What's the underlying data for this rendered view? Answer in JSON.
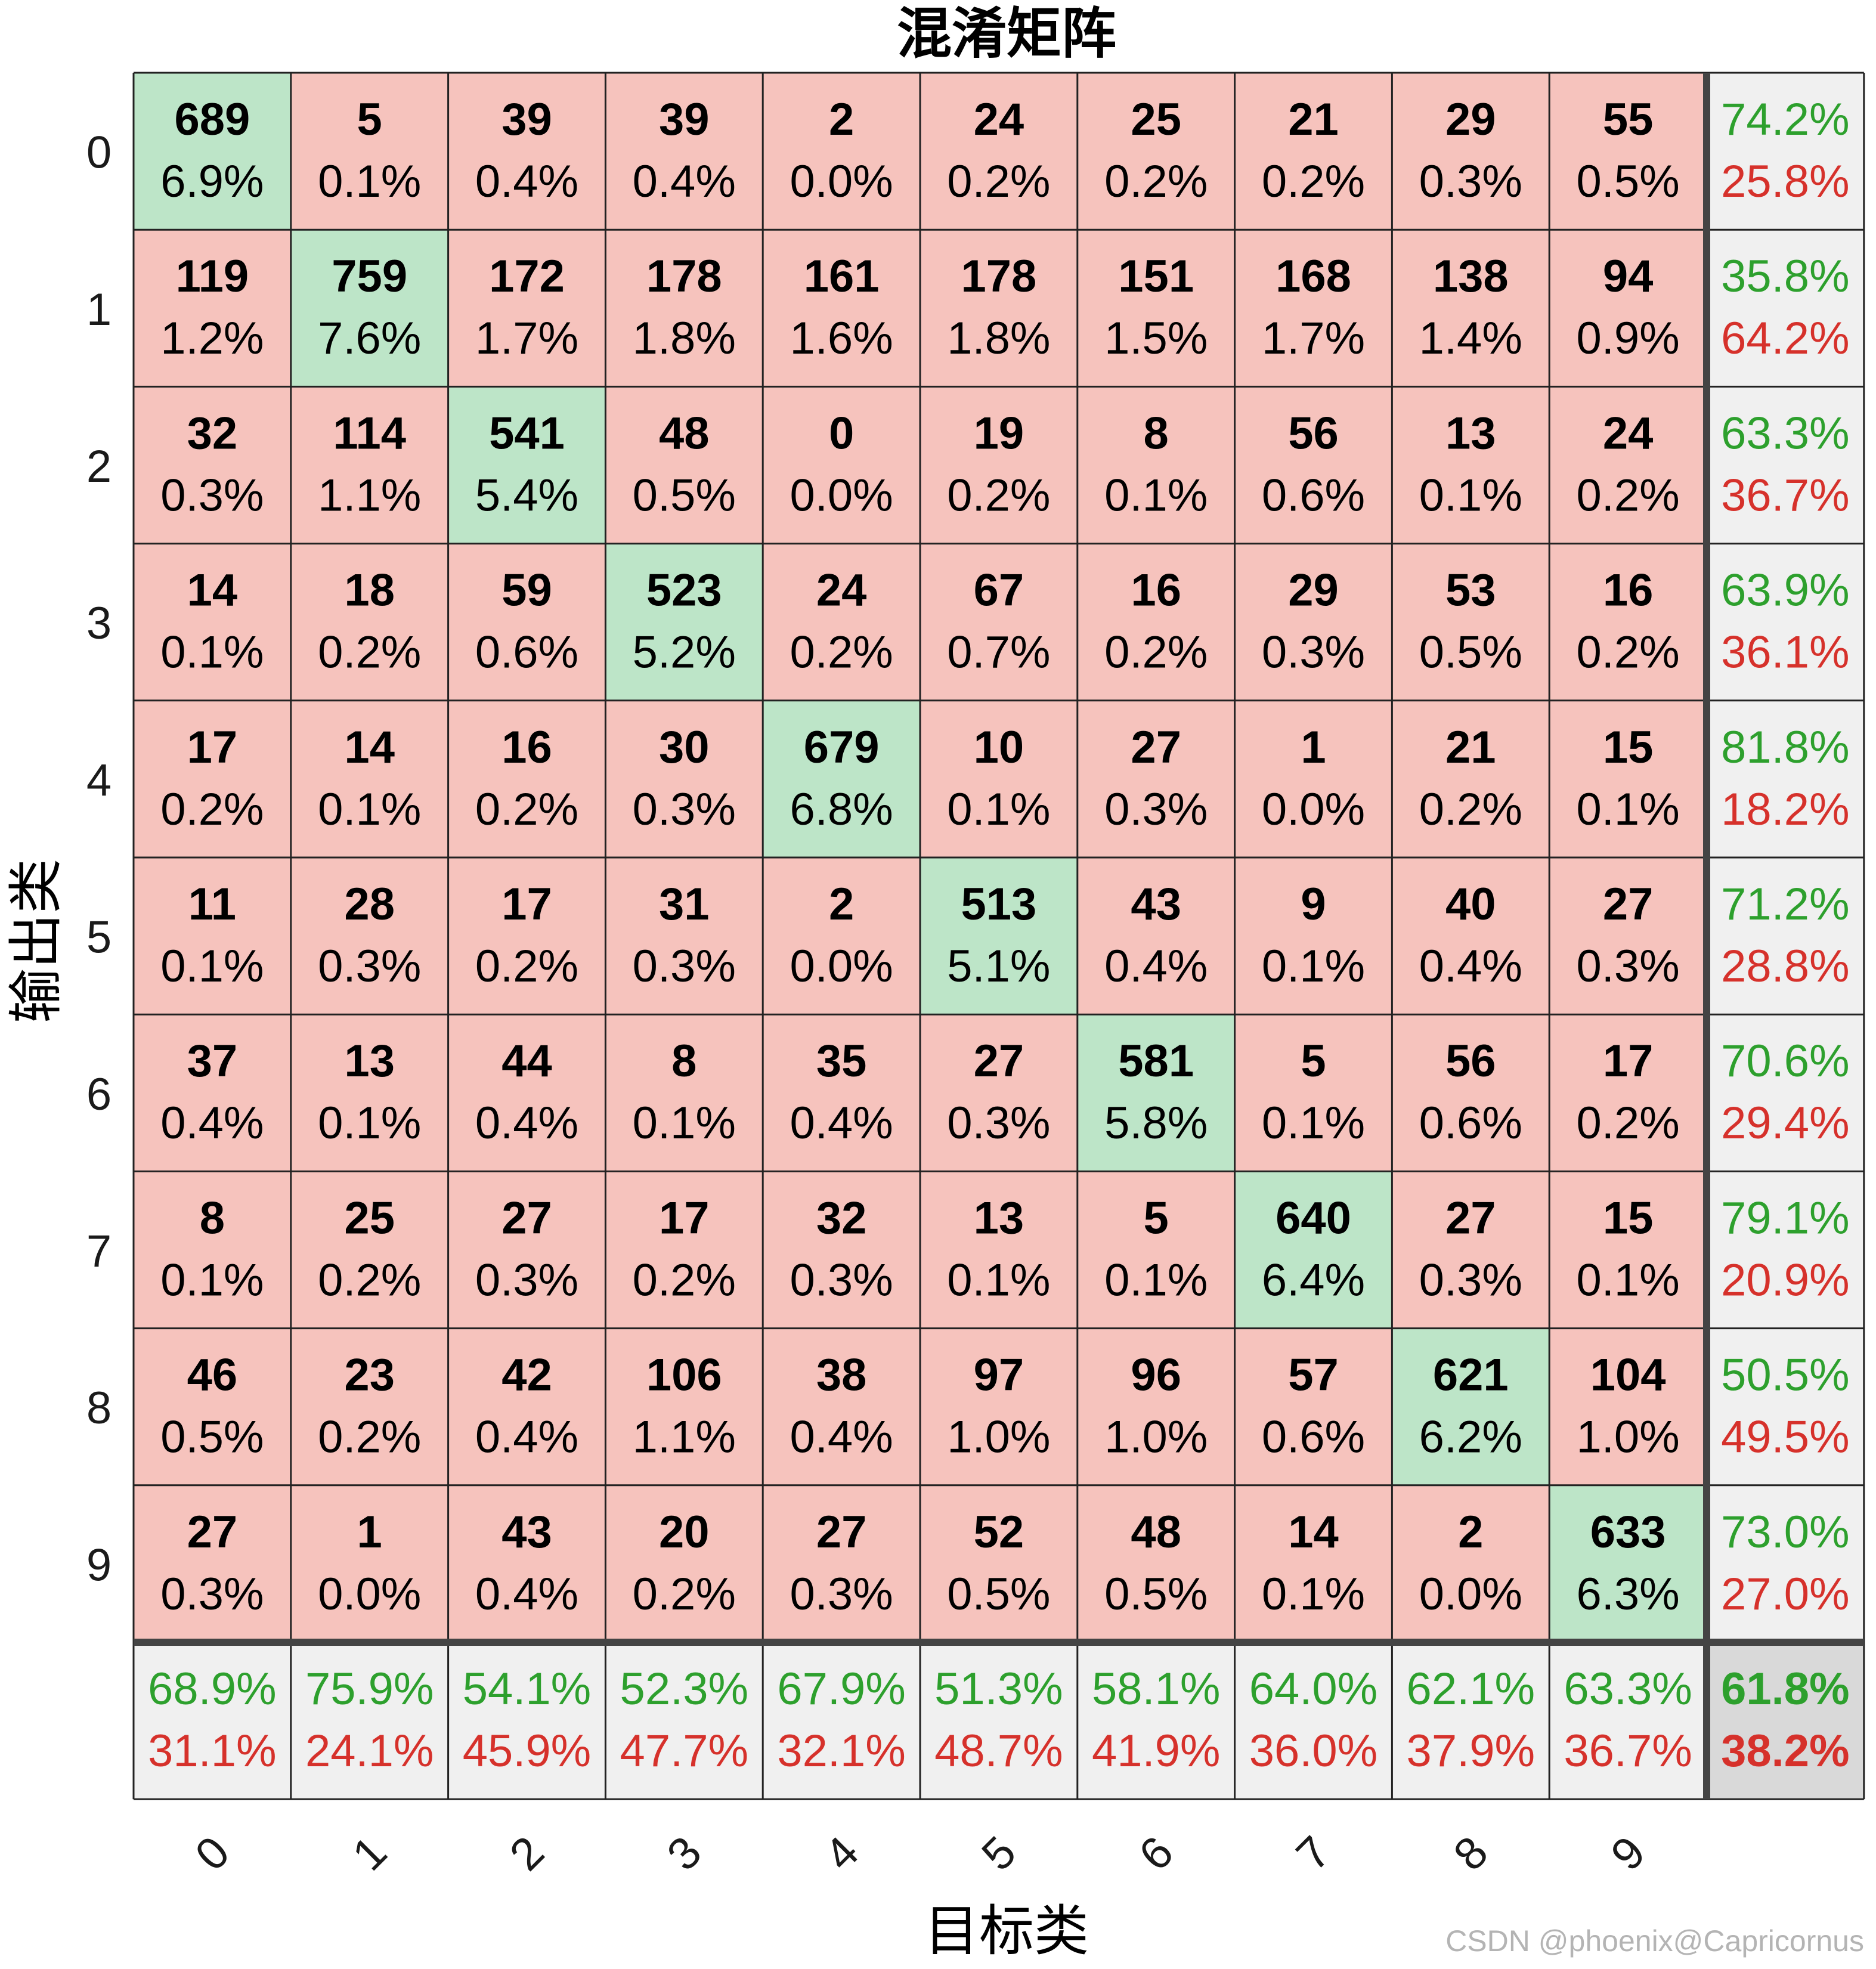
{
  "chart_data": {
    "type": "heatmap",
    "title": "混淆矩阵",
    "xlabel": "目标类",
    "ylabel": "输出类",
    "x_ticks": [
      "0",
      "1",
      "2",
      "3",
      "4",
      "5",
      "6",
      "7",
      "8",
      "9"
    ],
    "y_ticks": [
      "0",
      "1",
      "2",
      "3",
      "4",
      "5",
      "6",
      "7",
      "8",
      "9"
    ],
    "counts": [
      [
        689,
        5,
        39,
        39,
        2,
        24,
        25,
        21,
        29,
        55
      ],
      [
        119,
        759,
        172,
        178,
        161,
        178,
        151,
        168,
        138,
        94
      ],
      [
        32,
        114,
        541,
        48,
        0,
        19,
        8,
        56,
        13,
        24
      ],
      [
        14,
        18,
        59,
        523,
        24,
        67,
        16,
        29,
        53,
        16
      ],
      [
        17,
        14,
        16,
        30,
        679,
        10,
        27,
        1,
        21,
        15
      ],
      [
        11,
        28,
        17,
        31,
        2,
        513,
        43,
        9,
        40,
        27
      ],
      [
        37,
        13,
        44,
        8,
        35,
        27,
        581,
        5,
        56,
        17
      ],
      [
        8,
        25,
        27,
        17,
        32,
        13,
        5,
        640,
        27,
        15
      ],
      [
        46,
        23,
        42,
        106,
        38,
        97,
        96,
        57,
        621,
        104
      ],
      [
        27,
        1,
        43,
        20,
        27,
        52,
        48,
        14,
        2,
        633
      ]
    ],
    "percents": [
      [
        "6.9%",
        "0.1%",
        "0.4%",
        "0.4%",
        "0.0%",
        "0.2%",
        "0.2%",
        "0.2%",
        "0.3%",
        "0.5%"
      ],
      [
        "1.2%",
        "7.6%",
        "1.7%",
        "1.8%",
        "1.6%",
        "1.8%",
        "1.5%",
        "1.7%",
        "1.4%",
        "0.9%"
      ],
      [
        "0.3%",
        "1.1%",
        "5.4%",
        "0.5%",
        "0.0%",
        "0.2%",
        "0.1%",
        "0.6%",
        "0.1%",
        "0.2%"
      ],
      [
        "0.1%",
        "0.2%",
        "0.6%",
        "5.2%",
        "0.2%",
        "0.7%",
        "0.2%",
        "0.3%",
        "0.5%",
        "0.2%"
      ],
      [
        "0.2%",
        "0.1%",
        "0.2%",
        "0.3%",
        "6.8%",
        "0.1%",
        "0.3%",
        "0.0%",
        "0.2%",
        "0.1%"
      ],
      [
        "0.1%",
        "0.3%",
        "0.2%",
        "0.3%",
        "0.0%",
        "5.1%",
        "0.4%",
        "0.1%",
        "0.4%",
        "0.3%"
      ],
      [
        "0.4%",
        "0.1%",
        "0.4%",
        "0.1%",
        "0.4%",
        "0.3%",
        "5.8%",
        "0.1%",
        "0.6%",
        "0.2%"
      ],
      [
        "0.1%",
        "0.2%",
        "0.3%",
        "0.2%",
        "0.3%",
        "0.1%",
        "0.1%",
        "6.4%",
        "0.3%",
        "0.1%"
      ],
      [
        "0.5%",
        "0.2%",
        "0.4%",
        "1.1%",
        "0.4%",
        "1.0%",
        "1.0%",
        "0.6%",
        "6.2%",
        "1.0%"
      ],
      [
        "0.3%",
        "0.0%",
        "0.4%",
        "0.2%",
        "0.3%",
        "0.5%",
        "0.5%",
        "0.1%",
        "0.0%",
        "6.3%"
      ]
    ],
    "row_summary": [
      [
        "74.2%",
        "25.8%"
      ],
      [
        "35.8%",
        "64.2%"
      ],
      [
        "63.3%",
        "36.7%"
      ],
      [
        "63.9%",
        "36.1%"
      ],
      [
        "81.8%",
        "18.2%"
      ],
      [
        "71.2%",
        "28.8%"
      ],
      [
        "70.6%",
        "29.4%"
      ],
      [
        "79.1%",
        "20.9%"
      ],
      [
        "50.5%",
        "49.5%"
      ],
      [
        "73.0%",
        "27.0%"
      ]
    ],
    "col_summary": [
      [
        "68.9%",
        "31.1%"
      ],
      [
        "75.9%",
        "24.1%"
      ],
      [
        "54.1%",
        "45.9%"
      ],
      [
        "52.3%",
        "47.7%"
      ],
      [
        "67.9%",
        "32.1%"
      ],
      [
        "51.3%",
        "48.7%"
      ],
      [
        "58.1%",
        "41.9%"
      ],
      [
        "64.0%",
        "36.0%"
      ],
      [
        "62.1%",
        "37.9%"
      ],
      [
        "63.3%",
        "36.7%"
      ]
    ],
    "overall": [
      "61.8%",
      "38.2%"
    ],
    "colors": {
      "correct_cell": "#bde5c8",
      "wrong_cell": "#f6c3bd",
      "summary_cell": "#f0f0f0",
      "overall_cell": "#d9d9d9",
      "good_text": "#2da02d",
      "bad_text": "#d6312b",
      "count_text": "#000000",
      "grid_line": "#222222",
      "separator_line": "#444444"
    }
  },
  "watermark": "CSDN @phoenix@Capricornus"
}
